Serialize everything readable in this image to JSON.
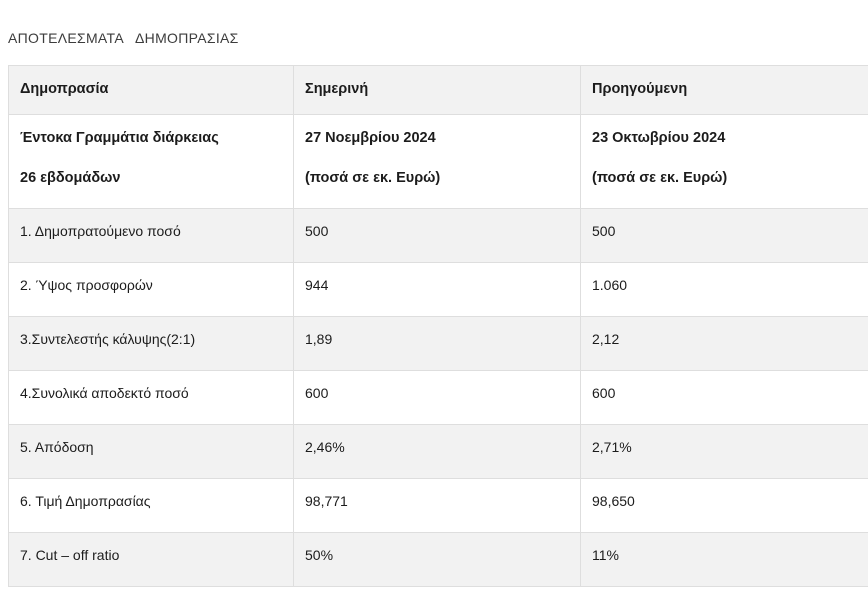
{
  "page": {
    "title": "ΑΠΟΤΕΛΕΣΜΑΤΑ   ΔΗΜΟΠΡΑΣΙΑΣ"
  },
  "table": {
    "columns": [
      "Δημοπρασία",
      "Σημερινή",
      "Προηγούμενη"
    ],
    "subheader": {
      "label_line1": "Έντοκα Γραμμάτια διάρκειας",
      "label_line2": "26 εβδομάδων",
      "current_line1": "27 Νοεμβρίου 2024",
      "current_line2": "(ποσά σε εκ. Ευρώ)",
      "previous_line1": "23 Οκτωβρίου 2024",
      "previous_line2": "(ποσά σε εκ. Ευρώ)"
    },
    "rows": [
      {
        "label": "1. Δημοπρατούμενο ποσό",
        "current": "500",
        "previous": "500"
      },
      {
        "label": "2. Ύψος προσφορών",
        "current": "944",
        "previous": "1.060"
      },
      {
        "label": "3.Συντελεστής κάλυψης(2:1)",
        "current": "1,89",
        "previous": "2,12"
      },
      {
        "label": "4.Συνολικά αποδεκτό ποσό",
        "current": "600",
        "previous": "600"
      },
      {
        "label": "5. Απόδοση",
        "current": "2,46%",
        "previous": "2,71%"
      },
      {
        "label": "6. Τιμή Δημοπρασίας",
        "current": "98,771",
        "previous": "98,650"
      },
      {
        "label": "7. Cut – off ratio",
        "current": "50%",
        "previous": "11%"
      }
    ],
    "colors": {
      "stripe_bg": "#f2f2f2",
      "row_bg": "#ffffff",
      "border": "#dedede",
      "text": "#1c1c1c"
    }
  }
}
